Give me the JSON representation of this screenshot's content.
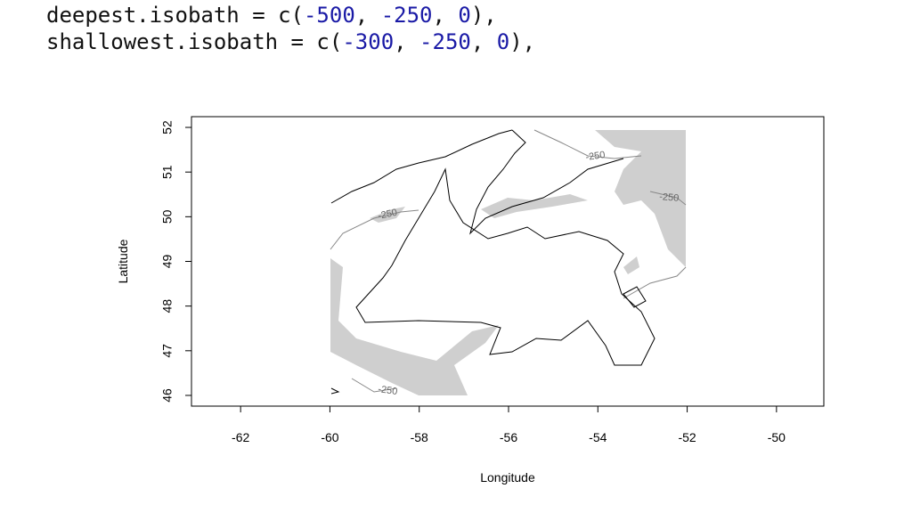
{
  "code": {
    "lines": [
      [
        "deepest.isobath = c(",
        "-500",
        ", ",
        "-250",
        ", ",
        "0",
        "),"
      ],
      [
        "shallowest.isobath = c(",
        "-300",
        ", ",
        "-250",
        ", ",
        "0",
        "),"
      ]
    ]
  },
  "plot": {
    "xlabel": "Longitude",
    "ylabel": "Latitude",
    "xlim": [
      -63.1,
      -48.94
    ],
    "ylim": [
      45.76,
      52.24
    ],
    "xticks": [
      -62,
      -60,
      -58,
      -56,
      -54,
      -52,
      -50
    ],
    "yticks": [
      46,
      47,
      48,
      49,
      50,
      51,
      52
    ],
    "contour_labels": [
      "-250",
      "-250",
      "-250",
      "-250"
    ]
  }
}
